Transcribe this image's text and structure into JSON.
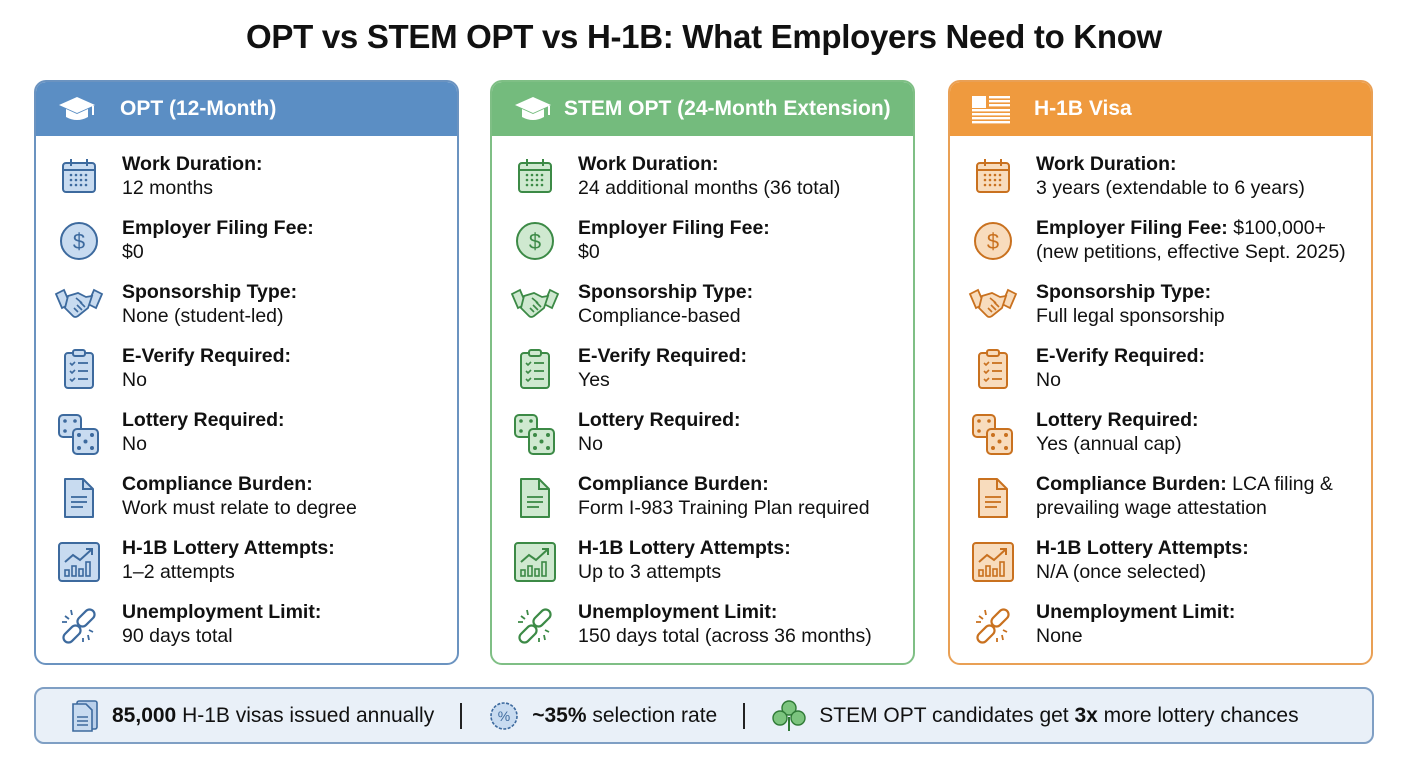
{
  "title": "OPT vs STEM OPT vs H-1B: What Employers Need to Know",
  "colors": {
    "opt": "#5b8ec4",
    "stem": "#74bb7d",
    "h1b": "#ef9a3e",
    "footer_bg": "#e9f0f8"
  },
  "cards": [
    {
      "header": "OPT (12-Month)",
      "header_icon": "graduation-cap-icon",
      "rows": [
        {
          "icon": "calendar-icon",
          "label": "Work Duration:",
          "value": "12 months"
        },
        {
          "icon": "dollar-icon",
          "label": "Employer Filing Fee:",
          "value": "$0"
        },
        {
          "icon": "handshake-icon",
          "label": "Sponsorship Type:",
          "value": "None (student-led)"
        },
        {
          "icon": "clipboard-checklist-icon",
          "label": "E-Verify Required:",
          "value": "No"
        },
        {
          "icon": "dice-icon",
          "label": "Lottery Required:",
          "value": "No"
        },
        {
          "icon": "document-icon",
          "label": "Compliance Burden:",
          "value": "Work must relate to degree"
        },
        {
          "icon": "growth-chart-icon",
          "label": "H-1B Lottery Attempts:",
          "value": "1–2 attempts"
        },
        {
          "icon": "broken-link-icon",
          "label": "Unemployment Limit:",
          "value": "90 days total"
        }
      ]
    },
    {
      "header": "STEM OPT (24-Month Extension)",
      "header_icon": "graduation-cap-icon",
      "rows": [
        {
          "icon": "calendar-icon",
          "label": "Work Duration:",
          "value": "24 additional months (36 total)"
        },
        {
          "icon": "dollar-icon",
          "label": "Employer Filing Fee:",
          "value": "$0"
        },
        {
          "icon": "handshake-icon",
          "label": "Sponsorship Type:",
          "value": "Compliance-based"
        },
        {
          "icon": "clipboard-checklist-icon",
          "label": "E-Verify Required:",
          "value": "Yes"
        },
        {
          "icon": "dice-icon",
          "label": "Lottery Required:",
          "value": "No"
        },
        {
          "icon": "document-icon",
          "label": "Compliance Burden:",
          "value": "Form I-983 Training Plan required"
        },
        {
          "icon": "growth-chart-icon",
          "label": "H-1B Lottery Attempts:",
          "value": "Up to 3 attempts"
        },
        {
          "icon": "broken-link-icon",
          "label": "Unemployment Limit:",
          "value": "150 days total (across 36 months)"
        }
      ]
    },
    {
      "header": "H-1B Visa",
      "header_icon": "us-flag-icon",
      "rows": [
        {
          "icon": "calendar-icon",
          "label": "Work Duration:",
          "value": "3 years (extendable to 6 years)"
        },
        {
          "icon": "dollar-icon",
          "label": "Employer Filing Fee:",
          "value_inline": "$100,000+",
          "value": "(new petitions, effective Sept. 2025)"
        },
        {
          "icon": "handshake-icon",
          "label": "Sponsorship Type:",
          "value": "Full legal sponsorship"
        },
        {
          "icon": "clipboard-checklist-icon",
          "label": "E-Verify Required:",
          "value": "No"
        },
        {
          "icon": "dice-icon",
          "label": "Lottery Required:",
          "value": "Yes (annual cap)"
        },
        {
          "icon": "document-icon",
          "label": "Compliance Burden:",
          "value_inline": "LCA filing &",
          "value": "prevailing wage attestation"
        },
        {
          "icon": "growth-chart-icon",
          "label": "H-1B Lottery Attempts:",
          "value": "N/A (once selected)"
        },
        {
          "icon": "broken-link-icon",
          "label": "Unemployment Limit:",
          "value": "None"
        }
      ]
    }
  ],
  "footer": {
    "items": [
      {
        "icon": "documents-icon",
        "bold": "85,000",
        "text": " H-1B visas issued annually"
      },
      {
        "icon": "percent-badge-icon",
        "bold": "~35%",
        "text": " selection rate"
      },
      {
        "icon": "clover-icon",
        "pre": "STEM OPT candidates get ",
        "bold": "3x",
        "text": " more lottery chances"
      }
    ]
  }
}
